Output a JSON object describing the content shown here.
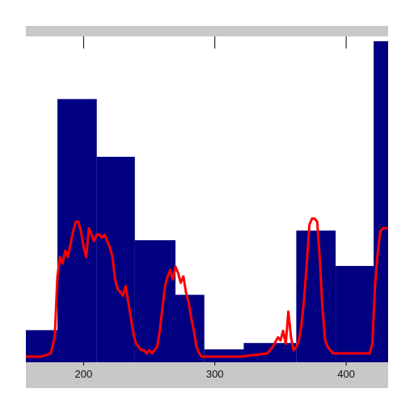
{
  "chart_data": {
    "type": "bar",
    "title": "",
    "xlabel": "",
    "ylabel": "",
    "xlim": [
      156,
      432
    ],
    "ylim": [
      0,
      100
    ],
    "x_ticks": [
      200,
      300,
      400
    ],
    "x_tick_labels": [
      "200",
      "300",
      "400"
    ],
    "grid": false,
    "legend": "none",
    "colors": {
      "bars": "#000080",
      "line": "#ff0000",
      "axis_band": "#c8c8c8",
      "background": "#ffffff"
    },
    "bars": [
      {
        "x0": 156,
        "x1": 180,
        "value": 10
      },
      {
        "x0": 180,
        "x1": 210,
        "value": 82
      },
      {
        "x0": 210,
        "x1": 239,
        "value": 64
      },
      {
        "x0": 239,
        "x1": 270,
        "value": 38
      },
      {
        "x0": 270,
        "x1": 292,
        "value": 21
      },
      {
        "x0": 292,
        "x1": 322,
        "value": 4
      },
      {
        "x0": 322,
        "x1": 362,
        "value": 6
      },
      {
        "x0": 362,
        "x1": 392,
        "value": 41
      },
      {
        "x0": 392,
        "x1": 421,
        "value": 30
      },
      {
        "x0": 421,
        "x1": 432,
        "value": 100
      }
    ],
    "series": [
      {
        "type": "line",
        "x": [
          156,
          168,
          175,
          178,
          180,
          182,
          184,
          186,
          188,
          190,
          192,
          194,
          196,
          198,
          200,
          202,
          204,
          206,
          208,
          210,
          212,
          214,
          216,
          218,
          220,
          222,
          224,
          226,
          228,
          230,
          232,
          234,
          236,
          238,
          240,
          242,
          244,
          246,
          248,
          250,
          252,
          254,
          256,
          258,
          260,
          262,
          264,
          266,
          268,
          270,
          272,
          274,
          276,
          278,
          280,
          282,
          284,
          286,
          288,
          290,
          292,
          300,
          320,
          340,
          344,
          348,
          350,
          352,
          354,
          356,
          358,
          360,
          362,
          364,
          366,
          368,
          370,
          372,
          374,
          376,
          378,
          380,
          382,
          384,
          386,
          388,
          390,
          394,
          400,
          410,
          418,
          420,
          422,
          424,
          426,
          428,
          432
        ],
        "y": [
          0,
          0,
          1,
          6,
          25,
          31,
          29,
          33,
          31,
          35,
          39,
          42,
          42,
          39,
          34,
          31,
          40,
          38,
          36,
          38,
          38,
          37,
          38,
          36,
          34,
          31,
          24,
          21,
          20,
          19,
          22,
          17,
          12,
          7,
          4,
          3,
          2,
          2,
          1,
          2,
          1,
          2,
          3,
          8,
          15,
          22,
          25,
          27,
          24,
          28,
          26,
          23,
          25,
          20,
          17,
          12,
          8,
          3,
          1,
          0,
          0,
          0,
          0,
          1,
          3,
          6,
          5,
          8,
          4,
          14,
          6,
          2,
          3,
          5,
          10,
          18,
          29,
          41,
          43,
          43,
          42,
          30,
          15,
          5,
          3,
          2,
          1,
          1,
          1,
          1,
          1,
          4,
          22,
          32,
          39,
          40,
          40
        ]
      }
    ]
  }
}
